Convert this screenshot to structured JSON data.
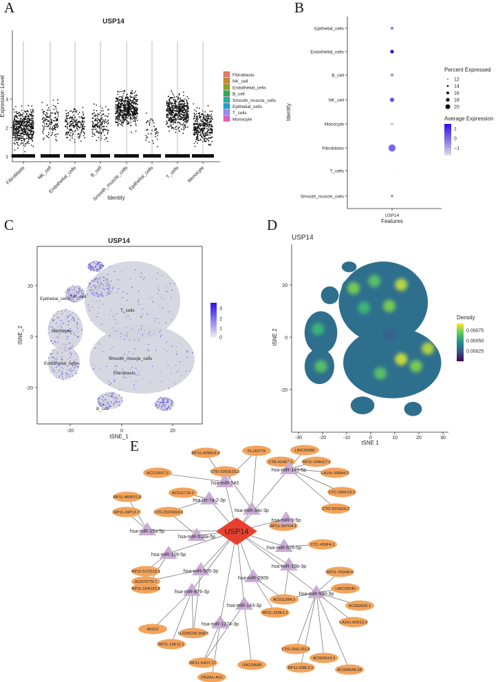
{
  "panels": {
    "A": {
      "letter": "A",
      "title": "USP14",
      "ylabel": "Expression Level",
      "xlabel": "Identity",
      "yticks": [
        "1",
        "2",
        "3"
      ],
      "categories": [
        "Fibroblasts",
        "NK_cell",
        "Endothelial_cells",
        "B_cell",
        "Smooth_muscle_cells",
        "Epithelial_cells",
        "T_cells",
        "Monocyte"
      ],
      "legend": [
        {
          "label": "Fibroblasts",
          "color": "#e8796b"
        },
        {
          "label": "NK_cell",
          "color": "#c98a2a"
        },
        {
          "label": "Endothelial_cells",
          "color": "#8fa323"
        },
        {
          "label": "B_cell",
          "color": "#2eaa4f"
        },
        {
          "label": "Smooth_muscle_cells",
          "color": "#1fb3a2"
        },
        {
          "label": "Epithelial_cells",
          "color": "#1ba6d9"
        },
        {
          "label": "T_cells",
          "color": "#9a8cf0"
        },
        {
          "label": "Monocyte",
          "color": "#ea5fb9"
        }
      ]
    },
    "B": {
      "letter": "B",
      "ylabel": "Identity",
      "xlabel": "Features",
      "xtick": "USP14",
      "percent_title": "Percent Expressed",
      "percent_levels": [
        "12",
        "14",
        "16",
        "18",
        "20"
      ],
      "avg_title": "Average Expression",
      "avg_ticks": [
        "1",
        "0",
        "−1"
      ]
    },
    "C": {
      "letter": "C",
      "title": "USP14",
      "xlabel": "tSNE_1",
      "ylabel": "tSNE_2",
      "xticks": [
        "-20",
        "0",
        "20"
      ],
      "yticks": [
        "20",
        "0",
        "-20"
      ],
      "cluster_labels": [
        "Epithelial_cells",
        "NK_cell",
        "T_cells",
        "Monocyte",
        "Endothelial_cells",
        "Smooth_muscle_cells",
        "Fibroblasts",
        "B_cell"
      ],
      "scale_ticks": [
        "3",
        "2",
        "1",
        "0"
      ]
    },
    "D": {
      "letter": "D",
      "title": "USP14",
      "xlabel": "tSNE 1",
      "ylabel": "tSNE 2",
      "xticks": [
        "-30",
        "-20",
        "-10",
        "0",
        "10",
        "20",
        "30"
      ],
      "yticks": [
        "20",
        "0",
        "-20"
      ],
      "legend_title": "Density",
      "legend_ticks": [
        "0.00075",
        "0.00050",
        "0.00025"
      ]
    },
    "E": {
      "letter": "E",
      "center": "USP14",
      "mirnas": [
        "hsa-miR-543",
        "hsa-miR-143-5p",
        "hsa-miR-34c-3p",
        "hsa-let-7a-2-3p",
        "hsa-miR-9-5p",
        "hsa-miR-15a-5p",
        "hsa-miR-518a-5p",
        "hsa-miR-576-5p",
        "hsa-miR-126-5p",
        "hsa-miR-15b-3p",
        "hsa-miR-505-3p",
        "hsa-miR-2909",
        "hsa-miR-876-3p",
        "hsa-miR-590-3p",
        "hsa-miR-143-3p",
        "hsa-miR-1224-3p"
      ],
      "lncrnas": [
        "RP11-429B14.4",
        "FLJ16779",
        "LINC00686",
        "CTA-414D7.1",
        "RP11-154H17.1",
        "CTD-2281E23.3",
        "LA16c-306A4.2",
        "AC113607.3",
        "AC011718.2",
        "CTC-265F19.1",
        "RP11-483P21.6",
        "CTD-2015G9.2",
        "RP11-34P13.7",
        "CTD-2521M24.5",
        "RP11-397O4.1",
        "CTC-459F4.1",
        "RP11-517O13.1",
        "RP11-164O23.8",
        "RP11-762H8.4",
        "AC079779.7",
        "LINC00240",
        "AC011284.3",
        "AC093639.1",
        "MUC2",
        "RP11-333E1.2",
        "LA16c-60D12.2",
        "LL22NC03-2H8.5",
        "RP11-13K12.1",
        "CTD-2561J22.5",
        "AC005614.3",
        "RP11-54O7.17",
        "RP11-638L3.1",
        "AC006548.28",
        "LINC00685",
        "OR2A1-AS1"
      ]
    }
  }
}
